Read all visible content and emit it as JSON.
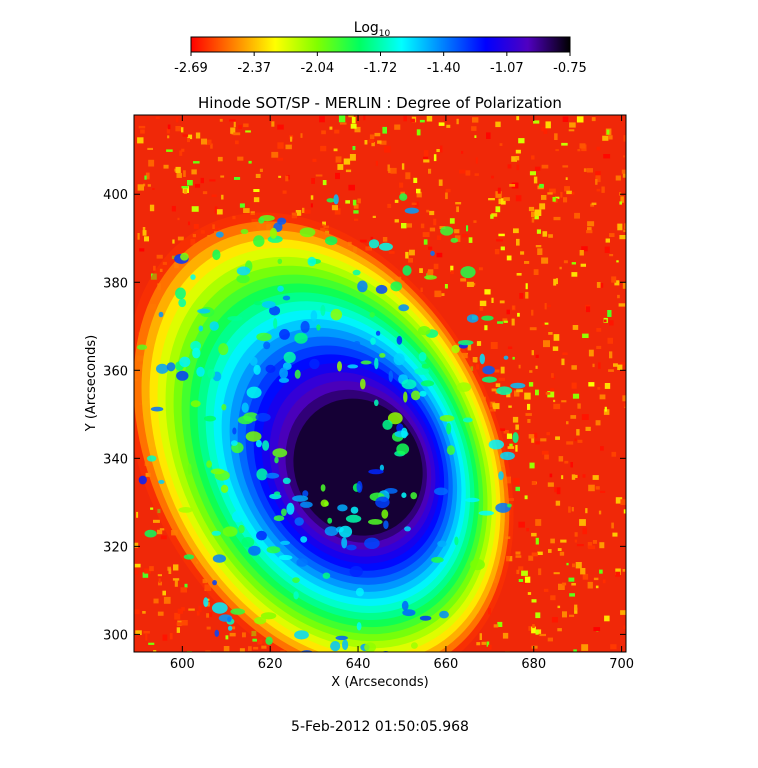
{
  "chart_data": {
    "type": "heatmap",
    "title": "Hinode SOT/SP - MERLIN : Degree of Polarization",
    "xlabel": "X (Arcseconds)",
    "ylabel": "Y (Arcseconds)",
    "xlim": [
      589,
      701
    ],
    "ylim": [
      296,
      418
    ],
    "x_ticks": [
      600,
      620,
      640,
      660,
      680,
      700
    ],
    "y_ticks": [
      300,
      320,
      340,
      360,
      380,
      400
    ],
    "colorbar": {
      "label_base": "Log",
      "label_sub": "10",
      "range": [
        -2.69,
        -0.75
      ],
      "ticks": [
        "-2.69",
        "-2.37",
        "-2.04",
        "-1.72",
        "-1.40",
        "-1.07",
        "-0.75"
      ],
      "colormap": [
        "#ff0000",
        "#ff8000",
        "#ffff00",
        "#80ff00",
        "#00ff60",
        "#00ffff",
        "#0080ff",
        "#0000ff",
        "#5000c0",
        "#000000"
      ]
    },
    "spot": {
      "center_x": 640,
      "center_y": 338,
      "value_peak": -0.8,
      "value_background": -2.6
    },
    "grid": false,
    "timestamp": "5-Feb-2012 01:50:05.968"
  }
}
